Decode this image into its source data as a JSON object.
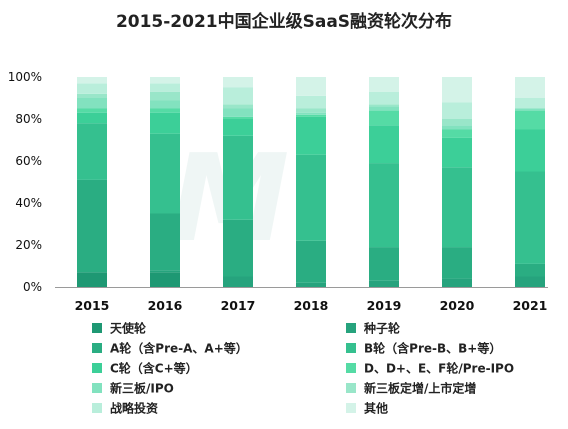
{
  "chart_data": {
    "type": "bar",
    "stacked": true,
    "title": "2015-2021中国企业级SaaS融资轮次分布",
    "categories": [
      "2015",
      "2016",
      "2017",
      "2018",
      "2019",
      "2020",
      "2021"
    ],
    "ylim": [
      0,
      100
    ],
    "y_ticks": [
      "0%",
      "20%",
      "40%",
      "60%",
      "80%",
      "100%"
    ],
    "legend_position": "bottom",
    "series": [
      {
        "name": "天使轮",
        "color": "#1e9873",
        "values": [
          7,
          7,
          0,
          0,
          0,
          0,
          0
        ]
      },
      {
        "name": "种子轮",
        "color": "#26a37d",
        "values": [
          0,
          1,
          5,
          2,
          3,
          4,
          5
        ]
      },
      {
        "name": "A轮（含Pre-A、A+等）",
        "color": "#2aad82",
        "values": [
          44,
          27,
          27,
          20,
          16,
          15,
          6
        ]
      },
      {
        "name": "B轮（含Pre-B、B+等）",
        "color": "#35c08f",
        "values": [
          27,
          38,
          40,
          41,
          40,
          38,
          44
        ]
      },
      {
        "name": "C轮（含C+等）",
        "color": "#3ccf98",
        "values": [
          5,
          10,
          8,
          18,
          18,
          14,
          20
        ]
      },
      {
        "name": "D、D+、E、F轮/Pre-IPO",
        "color": "#55dba5",
        "values": [
          2,
          2,
          1,
          1,
          7,
          4,
          9
        ]
      },
      {
        "name": "新三板/IPO",
        "color": "#82e2bf",
        "values": [
          5,
          4,
          4,
          1,
          2,
          2,
          1
        ]
      },
      {
        "name": "新三板定增/上市定增",
        "color": "#99e6c9",
        "values": [
          2,
          4,
          2,
          2,
          1,
          3,
          0
        ]
      },
      {
        "name": "战略投资",
        "color": "#b9eedb",
        "values": [
          5,
          4,
          8,
          6,
          6,
          8,
          5
        ]
      },
      {
        "name": "其他",
        "color": "#d4f3e8",
        "values": [
          3,
          3,
          5,
          9,
          7,
          12,
          10
        ]
      }
    ]
  },
  "colors": {
    "axis": "#9a9a9a",
    "watermark": "#e6f1ef"
  }
}
